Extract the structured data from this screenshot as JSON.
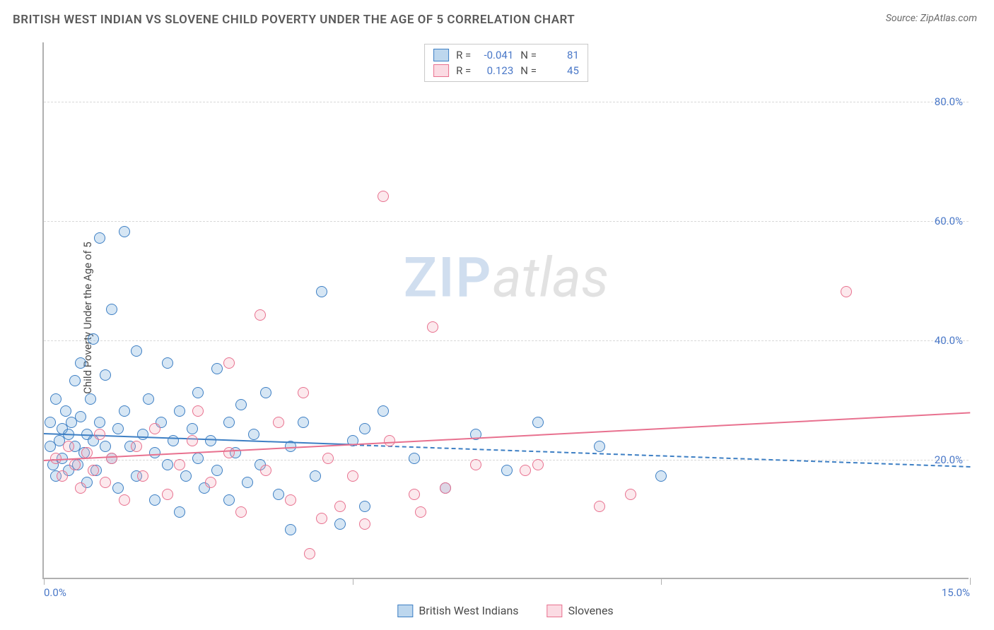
{
  "header": {
    "title": "BRITISH WEST INDIAN VS SLOVENE CHILD POVERTY UNDER THE AGE OF 5 CORRELATION CHART",
    "source_prefix": "Source: ",
    "source_name": "ZipAtlas.com"
  },
  "watermark": {
    "zip": "ZIP",
    "atlas": "atlas"
  },
  "chart": {
    "type": "scatter",
    "ylabel": "Child Poverty Under the Age of 5",
    "xlim": [
      0,
      15
    ],
    "ylim": [
      0,
      90
    ],
    "xticks": [
      0,
      5,
      10,
      15
    ],
    "xtick_labels": [
      "0.0%",
      "",
      "",
      "15.0%"
    ],
    "yticks": [
      20,
      40,
      60,
      80
    ],
    "ytick_labels": [
      "20.0%",
      "40.0%",
      "60.0%",
      "80.0%"
    ],
    "background_color": "#ffffff",
    "grid_color": "#d8d8d8",
    "axis_color": "#b0b0b0",
    "label_color": "#4a78c8",
    "point_radius": 8,
    "point_border_width": 1.5,
    "point_fill_opacity": 0.25,
    "series": [
      {
        "name": "British West Indians",
        "color": "#5a9bd5",
        "border_color": "#3d7fc4",
        "R": "-0.041",
        "N": "81",
        "trend": {
          "y_at_x0": 24.5,
          "y_at_xmax": 19.0,
          "style": "solid_then_dashed",
          "solid_until_x": 5.0,
          "width": 2.5
        },
        "points": [
          [
            0.1,
            22
          ],
          [
            0.1,
            26
          ],
          [
            0.15,
            19
          ],
          [
            0.2,
            30
          ],
          [
            0.2,
            17
          ],
          [
            0.25,
            23
          ],
          [
            0.3,
            25
          ],
          [
            0.3,
            20
          ],
          [
            0.35,
            28
          ],
          [
            0.4,
            24
          ],
          [
            0.4,
            18
          ],
          [
            0.45,
            26
          ],
          [
            0.5,
            22
          ],
          [
            0.5,
            33
          ],
          [
            0.55,
            19
          ],
          [
            0.6,
            27
          ],
          [
            0.6,
            36
          ],
          [
            0.65,
            21
          ],
          [
            0.7,
            24
          ],
          [
            0.7,
            16
          ],
          [
            0.75,
            30
          ],
          [
            0.8,
            23
          ],
          [
            0.8,
            40
          ],
          [
            0.85,
            18
          ],
          [
            0.9,
            26
          ],
          [
            0.9,
            57
          ],
          [
            1.0,
            22
          ],
          [
            1.0,
            34
          ],
          [
            1.1,
            20
          ],
          [
            1.1,
            45
          ],
          [
            1.2,
            25
          ],
          [
            1.2,
            15
          ],
          [
            1.3,
            58
          ],
          [
            1.3,
            28
          ],
          [
            1.4,
            22
          ],
          [
            1.5,
            38
          ],
          [
            1.5,
            17
          ],
          [
            1.6,
            24
          ],
          [
            1.7,
            30
          ],
          [
            1.8,
            21
          ],
          [
            1.8,
            13
          ],
          [
            1.9,
            26
          ],
          [
            2.0,
            19
          ],
          [
            2.0,
            36
          ],
          [
            2.1,
            23
          ],
          [
            2.2,
            28
          ],
          [
            2.2,
            11
          ],
          [
            2.3,
            17
          ],
          [
            2.4,
            25
          ],
          [
            2.5,
            31
          ],
          [
            2.5,
            20
          ],
          [
            2.6,
            15
          ],
          [
            2.7,
            23
          ],
          [
            2.8,
            18
          ],
          [
            2.8,
            35
          ],
          [
            3.0,
            26
          ],
          [
            3.0,
            13
          ],
          [
            3.1,
            21
          ],
          [
            3.2,
            29
          ],
          [
            3.3,
            16
          ],
          [
            3.4,
            24
          ],
          [
            3.5,
            19
          ],
          [
            3.6,
            31
          ],
          [
            3.8,
            14
          ],
          [
            4.0,
            22
          ],
          [
            4.0,
            8
          ],
          [
            4.2,
            26
          ],
          [
            4.4,
            17
          ],
          [
            4.5,
            48
          ],
          [
            4.8,
            9
          ],
          [
            5.0,
            23
          ],
          [
            5.2,
            25
          ],
          [
            5.2,
            12
          ],
          [
            5.5,
            28
          ],
          [
            6.0,
            20
          ],
          [
            6.5,
            15
          ],
          [
            7.0,
            24
          ],
          [
            7.5,
            18
          ],
          [
            8.0,
            26
          ],
          [
            9.0,
            22
          ],
          [
            10.0,
            17
          ]
        ]
      },
      {
        "name": "Slovenes",
        "color": "#f4a6b8",
        "border_color": "#e8718f",
        "R": "0.123",
        "N": "45",
        "trend": {
          "y_at_x0": 20.0,
          "y_at_xmax": 28.0,
          "style": "solid",
          "width": 2.5
        },
        "points": [
          [
            0.2,
            20
          ],
          [
            0.3,
            17
          ],
          [
            0.4,
            22
          ],
          [
            0.5,
            19
          ],
          [
            0.6,
            15
          ],
          [
            0.7,
            21
          ],
          [
            0.8,
            18
          ],
          [
            0.9,
            24
          ],
          [
            1.0,
            16
          ],
          [
            1.1,
            20
          ],
          [
            1.3,
            13
          ],
          [
            1.5,
            22
          ],
          [
            1.6,
            17
          ],
          [
            1.8,
            25
          ],
          [
            2.0,
            14
          ],
          [
            2.2,
            19
          ],
          [
            2.4,
            23
          ],
          [
            2.5,
            28
          ],
          [
            2.7,
            16
          ],
          [
            3.0,
            21
          ],
          [
            3.0,
            36
          ],
          [
            3.2,
            11
          ],
          [
            3.5,
            44
          ],
          [
            3.6,
            18
          ],
          [
            3.8,
            26
          ],
          [
            4.0,
            13
          ],
          [
            4.2,
            31
          ],
          [
            4.3,
            4
          ],
          [
            4.5,
            10
          ],
          [
            4.6,
            20
          ],
          [
            4.8,
            12
          ],
          [
            5.0,
            17
          ],
          [
            5.2,
            9
          ],
          [
            5.5,
            64
          ],
          [
            5.6,
            23
          ],
          [
            6.0,
            14
          ],
          [
            6.1,
            11
          ],
          [
            6.3,
            42
          ],
          [
            6.5,
            15
          ],
          [
            7.0,
            19
          ],
          [
            7.8,
            18
          ],
          [
            8.0,
            19
          ],
          [
            9.0,
            12
          ],
          [
            9.5,
            14
          ],
          [
            13.0,
            48
          ]
        ]
      }
    ]
  },
  "legend": {
    "stat_R_label": "R =",
    "stat_N_label": "N ="
  }
}
